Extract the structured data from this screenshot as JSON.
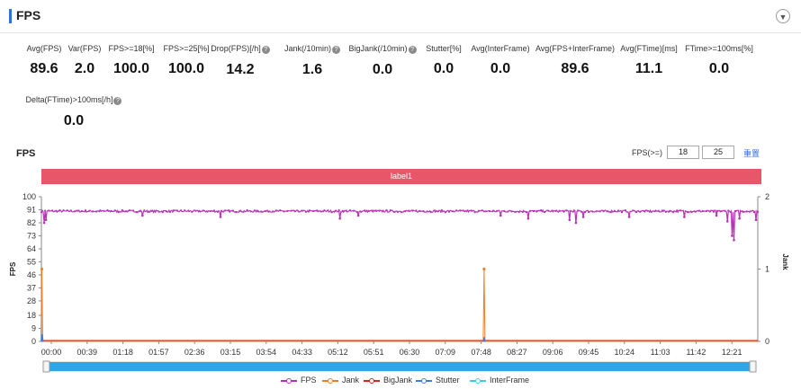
{
  "header": {
    "title": "FPS",
    "collapse_icon": "chevron-down-icon"
  },
  "metrics": [
    {
      "label": "Avg(FPS)",
      "value": "89.6",
      "help": false
    },
    {
      "label": "Var(FPS)",
      "value": "2.0",
      "help": false
    },
    {
      "label": "FPS>=18[%]",
      "value": "100.0",
      "help": false
    },
    {
      "label": "FPS>=25[%]",
      "value": "100.0",
      "help": false
    },
    {
      "label": "Drop(FPS)[/h]",
      "value": "14.2",
      "help": true
    },
    {
      "label": "Jank(/10min)",
      "value": "1.6",
      "help": true
    },
    {
      "label": "BigJank(/10min)",
      "value": "0.0",
      "help": true
    },
    {
      "label": "Stutter[%]",
      "value": "0.0",
      "help": false
    },
    {
      "label": "Avg(InterFrame)",
      "value": "0.0",
      "help": false
    },
    {
      "label": "Avg(FPS+InterFrame)",
      "value": "89.6",
      "help": false
    },
    {
      "label": "Avg(FTime)[ms]",
      "value": "11.1",
      "help": false
    },
    {
      "label": "FTime>=100ms[%]",
      "value": "0.0",
      "help": false
    },
    {
      "label": "Delta(FTime)>100ms[/h]",
      "value": "0.0",
      "help": true
    }
  ],
  "chart_section": {
    "title": "FPS",
    "threshold_label": "FPS(>=)",
    "threshold_low": "18",
    "threshold_high": "25",
    "reset_label": "重置",
    "label_bar": "label1"
  },
  "chart_data": {
    "type": "line",
    "xlabel": "",
    "ylabel": "FPS",
    "y2label": "Jank",
    "ylim": [
      0,
      100
    ],
    "y2lim": [
      0,
      2
    ],
    "yticks": [
      "100",
      "91",
      "82",
      "73",
      "64",
      "55",
      "46",
      "37",
      "28",
      "18",
      "9",
      "0"
    ],
    "y2ticks": [
      "2",
      "1",
      "0"
    ],
    "x_tick_labels": [
      "00:00",
      "00:39",
      "01:18",
      "01:57",
      "02:36",
      "03:15",
      "03:54",
      "04:33",
      "05:12",
      "05:51",
      "06:30",
      "07:09",
      "07:48",
      "08:27",
      "09:06",
      "09:45",
      "10:24",
      "11:03",
      "11:42",
      "12:21"
    ],
    "x_range_seconds": [
      0,
      780
    ],
    "fps_baseline": 90,
    "fps_dips": [
      {
        "t": 3,
        "fps": 82
      },
      {
        "t": 5,
        "fps": 84
      },
      {
        "t": 110,
        "fps": 87
      },
      {
        "t": 195,
        "fps": 86
      },
      {
        "t": 325,
        "fps": 85
      },
      {
        "t": 345,
        "fps": 87
      },
      {
        "t": 500,
        "fps": 87
      },
      {
        "t": 530,
        "fps": 85
      },
      {
        "t": 575,
        "fps": 84
      },
      {
        "t": 582,
        "fps": 82
      },
      {
        "t": 590,
        "fps": 86
      },
      {
        "t": 640,
        "fps": 86
      },
      {
        "t": 700,
        "fps": 86
      },
      {
        "t": 735,
        "fps": 87
      },
      {
        "t": 747,
        "fps": 83
      },
      {
        "t": 752,
        "fps": 73
      },
      {
        "t": 754,
        "fps": 70
      },
      {
        "t": 760,
        "fps": 85
      },
      {
        "t": 778,
        "fps": 84
      }
    ],
    "series": [
      {
        "name": "FPS",
        "color": "#b832b8"
      },
      {
        "name": "Jank",
        "color": "#f07c28",
        "events": [
          {
            "t": 0.5,
            "value": 1
          },
          {
            "t": 482,
            "value": 1
          }
        ]
      },
      {
        "name": "BigJank",
        "color": "#d9261c"
      },
      {
        "name": "Stutter",
        "color": "#3c7ee0",
        "events": [
          {
            "t": 1,
            "value": 0.1
          },
          {
            "t": 482,
            "value": 0.06
          }
        ]
      },
      {
        "name": "InterFrame",
        "color": "#3ccfe0"
      }
    ],
    "legend_position": "bottom",
    "slider": {
      "start": 0,
      "end": 1
    }
  }
}
